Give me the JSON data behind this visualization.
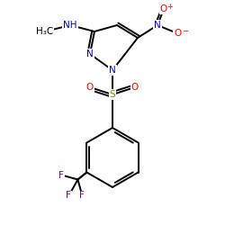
{
  "background_color": "#ffffff",
  "figsize": [
    2.5,
    2.5
  ],
  "dpi": 100,
  "colors": {
    "C": "#000000",
    "N": "#0000cd",
    "O": "#ff0000",
    "S": "#808000",
    "F": "#8b008b",
    "bond": "#000000"
  }
}
